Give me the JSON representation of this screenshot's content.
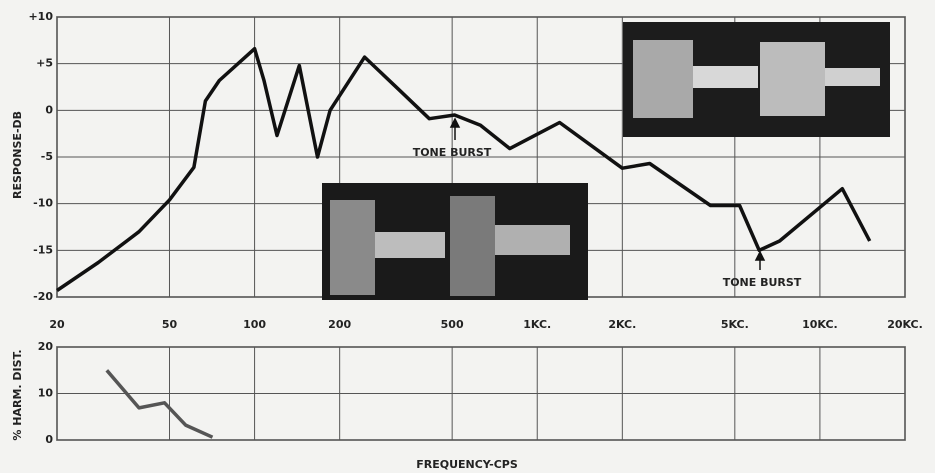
{
  "chart_data": [
    {
      "type": "line",
      "xscale": "log",
      "ylabel": "RESPONSE-DB",
      "x": [
        20,
        28,
        39,
        50,
        61,
        67,
        75,
        100,
        108,
        120,
        144,
        167,
        185,
        245,
        327,
        415,
        510,
        630,
        800,
        1200,
        2000,
        2500,
        4100,
        5200,
        6100,
        7200,
        12000,
        15000
      ],
      "series": [
        {
          "name": "Response",
          "color": "#111111",
          "values": [
            -19.3,
            -16.3,
            -13,
            -9.6,
            -6.1,
            1,
            3.2,
            6.6,
            3.2,
            -2.7,
            4.8,
            -5,
            0,
            5.7,
            2.1,
            -0.9,
            -0.5,
            -1.6,
            -4.1,
            -1.3,
            -6.2,
            -5.7,
            -10.2,
            -10.2,
            -15,
            -14,
            -8.4,
            -14
          ]
        }
      ],
      "xlim": [
        20,
        20000
      ],
      "xticks": [
        20,
        50,
        100,
        200,
        500,
        {
          "value": 1000,
          "label": "1KC."
        },
        {
          "value": 2000,
          "label": "2KC."
        },
        {
          "value": 5000,
          "label": "5KC."
        },
        {
          "value": 10000,
          "label": "10KC."
        },
        {
          "value": 20000,
          "label": "20KC."
        }
      ],
      "ylim": [
        -20,
        10
      ],
      "yticks": [
        {
          "value": 10,
          "label": "+10"
        },
        {
          "value": 5,
          "label": "+5"
        },
        0,
        -5,
        -10,
        -15,
        -20
      ],
      "grid": true,
      "annotations": [
        "TONE BURST",
        "TONE BURST"
      ]
    },
    {
      "type": "line",
      "xscale": "log",
      "ylabel": "% HARM. DIST.",
      "xlabel": "FREQUENCY-CPS",
      "x": [
        30,
        39,
        48,
        57,
        71
      ],
      "series": [
        {
          "name": "Distortion",
          "color": "#555555",
          "values": [
            15,
            6.9,
            8,
            3.2,
            0.6
          ]
        }
      ],
      "xlim": [
        20,
        20000
      ],
      "ylim": [
        0,
        20
      ],
      "yticks": [
        0,
        10,
        20
      ],
      "grid": true
    }
  ]
}
